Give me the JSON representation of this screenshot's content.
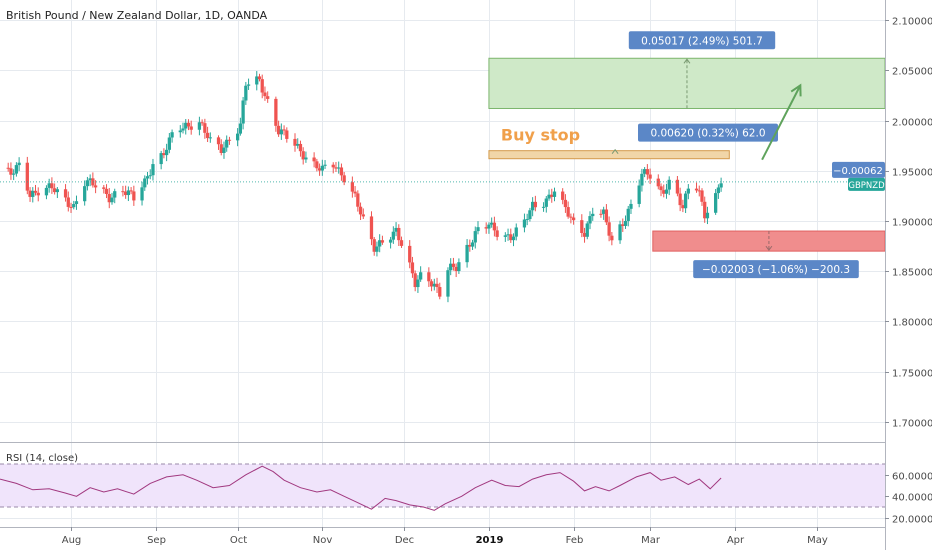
{
  "header": {
    "title": "British Pound / New Zealand Dollar, 1D, OANDA"
  },
  "colors": {
    "up": "#26a69a",
    "down": "#ef5350",
    "grid": "#e6eaef",
    "axis_text": "#4a4a4a",
    "target_fill": "#cfe9c8",
    "target_stroke": "#7cb56d",
    "stop_fill": "#f08d8d",
    "entry_fill": "#f1d6a8",
    "entry_stroke": "#d39a4c",
    "label_bg": "#5b87c7",
    "price_tag": "#5b87c7",
    "pair_tag": "#26a69a",
    "rsi_fill": "#f0e4fb",
    "rsi_line": "#a1387f",
    "arrow": "#5fa35c",
    "buy_stop": "#f0a04b"
  },
  "chart_data": [
    {
      "type": "line",
      "subtype": "candlestick",
      "title": "British Pound / New Zealand Dollar, 1D, OANDA",
      "symbol": "GBPNZD",
      "ylim": [
        1.68,
        2.12
      ],
      "yticks": [
        "1.70000",
        "1.75000",
        "1.80000",
        "1.85000",
        "1.90000",
        "1.95000",
        "2.00000",
        "2.05000",
        "2.10000"
      ],
      "ytick_values": [
        1.7,
        1.75,
        1.8,
        1.85,
        1.9,
        1.95,
        2.0,
        2.05,
        2.1
      ],
      "xticks": [
        "Aug",
        "Sep",
        "Oct",
        "Nov",
        "Dec",
        "2019",
        "Feb",
        "Mar",
        "Apr",
        "May"
      ],
      "x_start": "2018-07-06",
      "x_end": "2019-05-26",
      "xtick_dates": [
        "2018-08-01",
        "2018-09-01",
        "2018-10-01",
        "2018-11-01",
        "2018-12-01",
        "2019-01-01",
        "2019-02-01",
        "2019-03-01",
        "2019-04-01",
        "2019-05-01"
      ],
      "close_path": [
        [
          "2018-07-06",
          1.953
        ],
        [
          "2018-07-10",
          1.945
        ],
        [
          "2018-07-13",
          1.955
        ],
        [
          "2018-07-17",
          1.928
        ],
        [
          "2018-07-20",
          1.93
        ],
        [
          "2018-07-25",
          1.932
        ],
        [
          "2018-07-30",
          1.922
        ],
        [
          "2018-08-02",
          1.915
        ],
        [
          "2018-08-06",
          1.938
        ],
        [
          "2018-08-10",
          1.935
        ],
        [
          "2018-08-15",
          1.925
        ],
        [
          "2018-08-20",
          1.93
        ],
        [
          "2018-08-24",
          1.922
        ],
        [
          "2018-08-28",
          1.94
        ],
        [
          "2018-08-31",
          1.958
        ],
        [
          "2018-09-04",
          1.966
        ],
        [
          "2018-09-08",
          1.99
        ],
        [
          "2018-09-12",
          1.996
        ],
        [
          "2018-09-17",
          1.998
        ],
        [
          "2018-09-21",
          1.978
        ],
        [
          "2018-09-25",
          1.972
        ],
        [
          "2018-09-28",
          1.983
        ],
        [
          "2018-10-02",
          1.995
        ],
        [
          "2018-10-04",
          2.035
        ],
        [
          "2018-10-09",
          2.04
        ],
        [
          "2018-10-12",
          2.02
        ],
        [
          "2018-10-16",
          1.99
        ],
        [
          "2018-10-20",
          1.98
        ],
        [
          "2018-10-24",
          1.97
        ],
        [
          "2018-10-28",
          1.96
        ],
        [
          "2018-11-01",
          1.95
        ],
        [
          "2018-11-05",
          1.955
        ],
        [
          "2018-11-09",
          1.945
        ],
        [
          "2018-11-13",
          1.925
        ],
        [
          "2018-11-17",
          1.89
        ],
        [
          "2018-11-20",
          1.872
        ],
        [
          "2018-11-24",
          1.885
        ],
        [
          "2018-11-28",
          1.89
        ],
        [
          "2018-12-02",
          1.86
        ],
        [
          "2018-12-05",
          1.838
        ],
        [
          "2018-12-08",
          1.852
        ],
        [
          "2018-12-11",
          1.84
        ],
        [
          "2018-12-14",
          1.826
        ],
        [
          "2018-12-17",
          1.85
        ],
        [
          "2018-12-20",
          1.855
        ],
        [
          "2018-12-24",
          1.875
        ],
        [
          "2018-12-28",
          1.89
        ],
        [
          "2019-01-01",
          1.895
        ],
        [
          "2019-01-05",
          1.888
        ],
        [
          "2019-01-09",
          1.885
        ],
        [
          "2019-01-13",
          1.892
        ],
        [
          "2019-01-17",
          1.915
        ],
        [
          "2019-01-21",
          1.92
        ],
        [
          "2019-01-25",
          1.93
        ],
        [
          "2019-01-28",
          1.915
        ],
        [
          "2019-02-01",
          1.898
        ],
        [
          "2019-02-05",
          1.89
        ],
        [
          "2019-02-08",
          1.91
        ],
        [
          "2019-02-12",
          1.905
        ],
        [
          "2019-02-15",
          1.88
        ],
        [
          "2019-02-19",
          1.9
        ],
        [
          "2019-02-22",
          1.915
        ],
        [
          "2019-02-26",
          1.945
        ],
        [
          "2019-03-01",
          1.946
        ],
        [
          "2019-03-05",
          1.93
        ],
        [
          "2019-03-09",
          1.94
        ],
        [
          "2019-03-13",
          1.91
        ],
        [
          "2019-03-16",
          1.945
        ],
        [
          "2019-03-19",
          1.93
        ],
        [
          "2019-03-21",
          1.908
        ],
        [
          "2019-03-24",
          1.915
        ],
        [
          "2019-03-27",
          1.939
        ]
      ],
      "last_price_line": 1.939,
      "tags": {
        "last_change": "−0.00062",
        "symbol": "GBPNZD"
      },
      "position": {
        "entry_zone": {
          "from": "2019-01-01",
          "to": "2019-03-30",
          "low": 1.962,
          "high": 1.97,
          "label": "Buy stop"
        },
        "target_zone": {
          "from": "2019-01-01",
          "to": "2019-05-26",
          "low": 2.012,
          "high": 2.062,
          "label": "0.05017 (2.49%) 501.7"
        },
        "entry_label": "0.00620 (0.32%) 62.0",
        "stop_zone": {
          "from": "2019-03-02",
          "to": "2019-05-26",
          "low": 1.87,
          "high": 1.89,
          "label": "−0.02003 (−1.06%) −200.3"
        },
        "arrow": {
          "from_date": "2019-04-11",
          "from_price": 1.961,
          "to_date": "2019-04-25",
          "to_price": 2.035
        }
      }
    },
    {
      "type": "line",
      "title": "RSI (14, close)",
      "ylim": [
        17,
        84
      ],
      "yticks": [
        "20.0000",
        "40.0000",
        "60.0000"
      ],
      "ytick_values": [
        20,
        40,
        60
      ],
      "band": [
        30,
        70
      ],
      "mid": 50,
      "series": [
        {
          "values": [
            [
              "2018-07-06",
              56
            ],
            [
              "2018-07-12",
              52
            ],
            [
              "2018-07-18",
              46
            ],
            [
              "2018-07-24",
              47
            ],
            [
              "2018-07-30",
              43
            ],
            [
              "2018-08-03",
              40
            ],
            [
              "2018-08-08",
              48
            ],
            [
              "2018-08-13",
              44
            ],
            [
              "2018-08-18",
              47
            ],
            [
              "2018-08-24",
              42
            ],
            [
              "2018-08-30",
              52
            ],
            [
              "2018-09-05",
              58
            ],
            [
              "2018-09-11",
              60
            ],
            [
              "2018-09-16",
              55
            ],
            [
              "2018-09-22",
              48
            ],
            [
              "2018-09-28",
              50
            ],
            [
              "2018-10-04",
              60
            ],
            [
              "2018-10-10",
              68
            ],
            [
              "2018-10-14",
              63
            ],
            [
              "2018-10-18",
              55
            ],
            [
              "2018-10-24",
              48
            ],
            [
              "2018-10-30",
              44
            ],
            [
              "2018-11-04",
              46
            ],
            [
              "2018-11-09",
              40
            ],
            [
              "2018-11-14",
              34
            ],
            [
              "2018-11-19",
              28
            ],
            [
              "2018-11-24",
              38
            ],
            [
              "2018-11-28",
              36
            ],
            [
              "2018-12-03",
              32
            ],
            [
              "2018-12-08",
              30
            ],
            [
              "2018-12-12",
              27
            ],
            [
              "2018-12-16",
              33
            ],
            [
              "2018-12-22",
              40
            ],
            [
              "2018-12-27",
              48
            ],
            [
              "2019-01-02",
              55
            ],
            [
              "2019-01-07",
              50
            ],
            [
              "2019-01-12",
              49
            ],
            [
              "2019-01-17",
              56
            ],
            [
              "2019-01-22",
              60
            ],
            [
              "2019-01-27",
              62
            ],
            [
              "2019-02-01",
              54
            ],
            [
              "2019-02-05",
              45
            ],
            [
              "2019-02-09",
              49
            ],
            [
              "2019-02-14",
              45
            ],
            [
              "2019-02-18",
              50
            ],
            [
              "2019-02-24",
              58
            ],
            [
              "2019-03-01",
              62
            ],
            [
              "2019-03-05",
              55
            ],
            [
              "2019-03-10",
              58
            ],
            [
              "2019-03-15",
              51
            ],
            [
              "2019-03-19",
              56
            ],
            [
              "2019-03-23",
              47
            ],
            [
              "2019-03-27",
              57
            ]
          ]
        }
      ]
    }
  ]
}
